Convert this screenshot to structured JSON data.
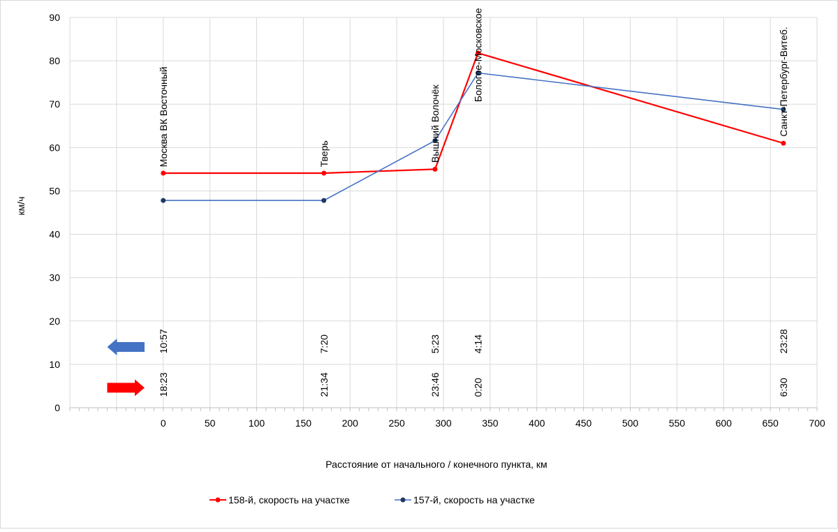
{
  "chart_data": {
    "type": "line",
    "title": "",
    "xlabel": "Расстояние от начального / конечного пункта, км",
    "ylabel": "км/ч",
    "xlim": [
      -100,
      700
    ],
    "ylim": [
      0,
      90
    ],
    "x_major_ticks": [
      0,
      50,
      100,
      150,
      200,
      250,
      300,
      350,
      400,
      450,
      500,
      550,
      600,
      650,
      700
    ],
    "x_gridlines": [
      -100,
      -50,
      0,
      50,
      100,
      150,
      200,
      250,
      300,
      350,
      400,
      450,
      500,
      550,
      600,
      650,
      700
    ],
    "x_minor_step": 10,
    "y_ticks": [
      0,
      10,
      20,
      30,
      40,
      50,
      60,
      70,
      80,
      90
    ],
    "grid": true,
    "legend_position": "bottom",
    "series": [
      {
        "name": "158-й, скорость на участке",
        "color": "#ff0000",
        "marker_color": "#ff0000",
        "x": [
          0,
          172,
          291,
          337,
          664
        ],
        "y": [
          54.1,
          54.1,
          55.0,
          81.8,
          61.0
        ]
      },
      {
        "name": "157-й, скорость на участке",
        "color": "#4472c4",
        "marker_color": "#1f3864",
        "x": [
          0,
          172,
          291,
          337,
          664
        ],
        "y": [
          47.8,
          47.8,
          61.6,
          77.2,
          68.8
        ]
      }
    ],
    "stations": [
      {
        "name": "Москва ВК Восточный",
        "x": 0,
        "label_y": 55.5,
        "time_157": "10:57",
        "time_158": "18:23"
      },
      {
        "name": "Тверь",
        "x": 172,
        "label_y": 55.5,
        "time_157": "7:20",
        "time_158": "21:34"
      },
      {
        "name": "Вышний Волочёк",
        "x": 291,
        "label_y": 56.5,
        "time_157": "5:23",
        "time_158": "23:46"
      },
      {
        "name": "Бологое-Московское",
        "x": 337,
        "label_y": 70.5,
        "time_157": "4:14",
        "time_158": "0:20"
      },
      {
        "name": "Санкт-Петербург-Витеб.",
        "x": 664,
        "label_y": 62.5,
        "time_157": "23:28",
        "time_158": "6:30"
      }
    ],
    "time_rows": {
      "time_157_y": 12.5,
      "time_158_y": 2.5
    },
    "direction_arrows": [
      {
        "name": "157",
        "direction": "left",
        "color": "#4472c4",
        "x_from": -60,
        "x_to": -20,
        "y": 14.0
      },
      {
        "name": "158",
        "direction": "right",
        "color": "#ff0000",
        "x_from": -60,
        "x_to": -20,
        "y": 4.6
      }
    ]
  }
}
